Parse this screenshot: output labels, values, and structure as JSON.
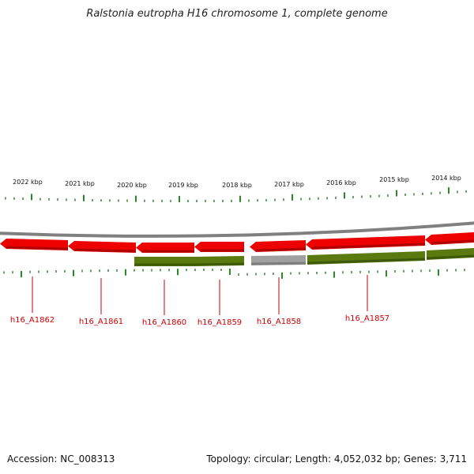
{
  "title": "Ralstonia eutropha H16 chromosome 1, complete genome",
  "footer": {
    "accession": "Accession: NC_008313",
    "summary": "Topology: circular; Length: 4,052,032 bp; Genes: 3,711"
  },
  "colors": {
    "cds": "#ee0000",
    "gene": "#5a7a10",
    "pseudo_gene": "#a0a0a0",
    "backbone": "#808080",
    "tick": "#2a8a2a",
    "gene_label": "#cc0000"
  },
  "ruler": {
    "kbp_labels": [
      "2022 kbp",
      "2021 kbp",
      "2020 kbp",
      "2019 kbp",
      "2018 kbp",
      "2017 kbp",
      "2016 kbp",
      "2015 kbp",
      "2014 kbp"
    ]
  },
  "genes": [
    {
      "locus": "h16_A1862",
      "feature": "cds",
      "strand": "reverse"
    },
    {
      "locus": "h16_A1861",
      "feature": "cds",
      "strand": "reverse"
    },
    {
      "locus": "h16_A1860",
      "feature": "cds+gene",
      "strand": "reverse"
    },
    {
      "locus": "h16_A1859",
      "feature": "cds+gene",
      "strand": "reverse"
    },
    {
      "locus": "h16_A1858",
      "feature": "cds+pseudo",
      "strand": "reverse"
    },
    {
      "locus": "h16_A1857",
      "feature": "cds+gene",
      "strand": "reverse"
    }
  ]
}
